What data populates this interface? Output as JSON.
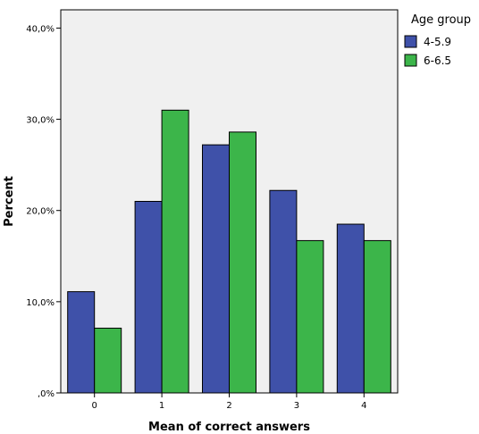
{
  "chart_data": {
    "type": "bar",
    "xlabel": "Mean of correct answers",
    "ylabel": "Percent",
    "categories": [
      "0",
      "1",
      "2",
      "3",
      "4"
    ],
    "ylim": [
      0,
      42
    ],
    "yticks": [
      0,
      10,
      20,
      30,
      40
    ],
    "ytick_labels": [
      ",0%",
      "10,0%",
      "20,0%",
      "30,0%",
      "40,0%"
    ],
    "grid": false,
    "background": "#f0f0f0",
    "legend": {
      "title": "Age group",
      "position": "right"
    },
    "series": [
      {
        "name": "4-5.9",
        "color": "#3f51a9",
        "values": [
          11.1,
          21.0,
          27.2,
          22.2,
          18.5
        ]
      },
      {
        "name": "6-6.5",
        "color": "#3cb54a",
        "values": [
          7.1,
          31.0,
          28.6,
          16.7,
          16.7
        ]
      }
    ]
  }
}
